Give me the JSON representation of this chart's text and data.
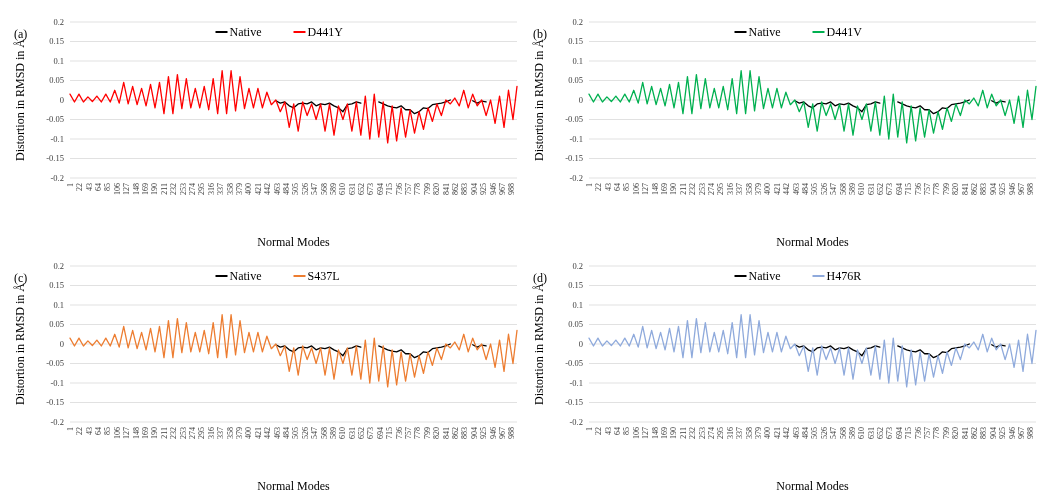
{
  "chart_data": [
    {
      "type": "line",
      "annotations": [
        "(a)"
      ],
      "xlabel": "Normal Modes",
      "ylabel": "Distortion in RMSD in Å",
      "grid": "y",
      "legend": "top",
      "xlim": [
        1,
        1000
      ],
      "xticks": [
        1,
        22,
        43,
        64,
        85,
        106,
        127,
        148,
        169,
        190,
        211,
        232,
        253,
        274,
        295,
        316,
        337,
        358,
        379,
        400,
        421,
        442,
        463,
        484,
        505,
        526,
        547,
        568,
        589,
        610,
        631,
        652,
        673,
        694,
        715,
        736,
        757,
        778,
        799,
        820,
        841,
        862,
        883,
        904,
        925,
        946,
        967,
        988
      ],
      "ylim": [
        -0.2,
        0.2
      ],
      "yticks": [
        0.2,
        0.15,
        0.1,
        0.05,
        0,
        -0.05,
        -0.1,
        -0.15,
        -0.2
      ],
      "x": [
        1,
        11,
        21,
        31,
        41,
        51,
        61,
        71,
        81,
        91,
        101,
        111,
        121,
        131,
        141,
        151,
        161,
        171,
        181,
        191,
        201,
        211,
        221,
        231,
        241,
        251,
        261,
        271,
        281,
        291,
        301,
        311,
        321,
        331,
        341,
        351,
        361,
        371,
        381,
        391,
        401,
        411,
        421,
        431,
        441,
        451,
        461,
        471,
        481,
        491,
        501,
        511,
        521,
        531,
        541,
        551,
        561,
        571,
        581,
        591,
        601,
        611,
        621,
        631,
        641,
        651,
        661,
        671,
        681,
        691,
        701,
        711,
        721,
        731,
        741,
        751,
        761,
        771,
        781,
        791,
        801,
        811,
        821,
        831,
        841,
        851,
        861,
        871,
        881,
        891,
        901,
        911,
        921,
        931,
        941,
        951,
        961,
        971,
        981,
        991,
        1000
      ],
      "series": [
        {
          "name": "Native",
          "color": "#000000",
          "x": [
            461,
            471,
            481,
            491,
            501,
            511,
            521,
            531,
            541,
            551,
            561,
            571,
            581,
            591,
            601,
            611,
            621,
            631,
            641,
            651,
            661,
            671,
            681,
            691,
            701,
            711,
            721,
            731,
            741,
            751,
            761,
            771,
            781,
            791,
            801,
            811,
            821,
            831,
            841,
            851,
            861,
            871,
            881,
            891,
            901,
            911,
            921,
            931
          ],
          "values": [
            -0.002,
            -0.008,
            -0.005,
            -0.015,
            -0.02,
            -0.01,
            -0.008,
            -0.01,
            -0.005,
            -0.015,
            -0.01,
            -0.012,
            -0.008,
            -0.015,
            -0.02,
            -0.03,
            -0.012,
            -0.01,
            -0.005,
            -0.008,
            null,
            null,
            null,
            -0.005,
            -0.01,
            -0.015,
            -0.018,
            -0.02,
            -0.015,
            -0.025,
            -0.025,
            -0.035,
            -0.03,
            -0.02,
            -0.022,
            -0.012,
            -0.01,
            -0.008,
            -0.005,
            0,
            null,
            null,
            null,
            null,
            -0.002,
            -0.008,
            -0.003,
            -0.005
          ]
        },
        {
          "name": "D441Y",
          "color": "#ff0000",
          "values": [
            0.015,
            -0.005,
            0.015,
            -0.005,
            0.008,
            -0.004,
            0.01,
            -0.005,
            0.015,
            -0.005,
            0.025,
            -0.008,
            0.045,
            -0.01,
            0.035,
            -0.012,
            0.03,
            -0.015,
            0.04,
            -0.02,
            0.045,
            -0.035,
            0.06,
            -0.035,
            0.065,
            -0.022,
            0.055,
            -0.02,
            0.03,
            -0.02,
            0.035,
            -0.025,
            0.055,
            -0.035,
            0.075,
            -0.035,
            0.075,
            -0.028,
            0.06,
            -0.022,
            0.03,
            -0.02,
            0.03,
            -0.02,
            0.02,
            -0.012,
            0,
            -0.03,
            -0.005,
            -0.07,
            -0.01,
            -0.08,
            -0.005,
            -0.04,
            -0.01,
            -0.05,
            -0.01,
            -0.08,
            -0.01,
            -0.09,
            -0.015,
            -0.05,
            -0.01,
            -0.08,
            -0.005,
            -0.09,
            0.01,
            -0.1,
            0.015,
            -0.095,
            -0.005,
            -0.11,
            -0.015,
            -0.105,
            -0.02,
            -0.095,
            -0.025,
            -0.085,
            -0.03,
            -0.075,
            -0.02,
            -0.055,
            -0.01,
            -0.04,
            0,
            -0.01,
            0.005,
            -0.015,
            0.025,
            -0.02,
            0.015,
            -0.015,
            0,
            -0.04,
            0,
            -0.06,
            0.01,
            -0.07,
            0.025,
            -0.05,
            0.035
          ]
        }
      ]
    },
    {
      "type": "line",
      "annotations": [
        "(b)"
      ],
      "xlabel": "Normal Modes",
      "ylabel": "Distortion in RMSD in Å",
      "grid": "y",
      "legend": "top",
      "xlim": [
        1,
        1000
      ],
      "xticks": [
        1,
        22,
        43,
        64,
        85,
        106,
        127,
        148,
        169,
        190,
        211,
        232,
        253,
        274,
        295,
        316,
        337,
        358,
        379,
        400,
        421,
        442,
        463,
        484,
        505,
        526,
        547,
        568,
        589,
        610,
        631,
        652,
        673,
        694,
        715,
        736,
        757,
        778,
        799,
        820,
        841,
        862,
        883,
        904,
        925,
        946,
        967,
        988
      ],
      "ylim": [
        -0.2,
        0.2
      ],
      "yticks": [
        0.2,
        0.15,
        0.1,
        0.05,
        0,
        -0.05,
        -0.1,
        -0.15,
        -0.2
      ],
      "x": [
        1,
        11,
        21,
        31,
        41,
        51,
        61,
        71,
        81,
        91,
        101,
        111,
        121,
        131,
        141,
        151,
        161,
        171,
        181,
        191,
        201,
        211,
        221,
        231,
        241,
        251,
        261,
        271,
        281,
        291,
        301,
        311,
        321,
        331,
        341,
        351,
        361,
        371,
        381,
        391,
        401,
        411,
        421,
        431,
        441,
        451,
        461,
        471,
        481,
        491,
        501,
        511,
        521,
        531,
        541,
        551,
        561,
        571,
        581,
        591,
        601,
        611,
        621,
        631,
        641,
        651,
        661,
        671,
        681,
        691,
        701,
        711,
        721,
        731,
        741,
        751,
        761,
        771,
        781,
        791,
        801,
        811,
        821,
        831,
        841,
        851,
        861,
        871,
        881,
        891,
        901,
        911,
        921,
        931,
        941,
        951,
        961,
        971,
        981,
        991,
        1000
      ],
      "series": [
        {
          "name": "Native",
          "color": "#000000",
          "x": [
            461,
            471,
            481,
            491,
            501,
            511,
            521,
            531,
            541,
            551,
            561,
            571,
            581,
            591,
            601,
            611,
            621,
            631,
            641,
            651,
            661,
            671,
            681,
            691,
            701,
            711,
            721,
            731,
            741,
            751,
            761,
            771,
            781,
            791,
            801,
            811,
            821,
            831,
            841,
            851,
            861,
            871,
            881,
            891,
            901,
            911,
            921,
            931
          ],
          "values": [
            -0.002,
            -0.008,
            -0.005,
            -0.015,
            -0.02,
            -0.01,
            -0.008,
            -0.01,
            -0.005,
            -0.015,
            -0.01,
            -0.012,
            -0.008,
            -0.015,
            -0.02,
            -0.03,
            -0.012,
            -0.01,
            -0.005,
            -0.008,
            null,
            null,
            null,
            -0.005,
            -0.01,
            -0.015,
            -0.018,
            -0.02,
            -0.015,
            -0.025,
            -0.025,
            -0.035,
            -0.03,
            -0.02,
            -0.022,
            -0.012,
            -0.01,
            -0.008,
            -0.005,
            0,
            null,
            null,
            null,
            null,
            -0.002,
            -0.008,
            -0.003,
            -0.005
          ]
        },
        {
          "name": "D441V",
          "color": "#00b050",
          "values": [
            0.015,
            -0.005,
            0.015,
            -0.005,
            0.008,
            -0.004,
            0.01,
            -0.005,
            0.015,
            -0.005,
            0.025,
            -0.008,
            0.045,
            -0.01,
            0.035,
            -0.012,
            0.03,
            -0.015,
            0.04,
            -0.02,
            0.045,
            -0.035,
            0.06,
            -0.035,
            0.065,
            -0.022,
            0.055,
            -0.02,
            0.03,
            -0.02,
            0.035,
            -0.025,
            0.055,
            -0.035,
            0.075,
            -0.035,
            0.075,
            -0.028,
            0.06,
            -0.022,
            0.03,
            -0.02,
            0.03,
            -0.02,
            0.02,
            -0.012,
            0,
            -0.03,
            -0.005,
            -0.07,
            -0.01,
            -0.08,
            -0.005,
            -0.04,
            -0.01,
            -0.05,
            -0.01,
            -0.08,
            -0.01,
            -0.09,
            -0.015,
            -0.05,
            -0.01,
            -0.08,
            -0.005,
            -0.09,
            0.01,
            -0.1,
            0.015,
            -0.095,
            -0.005,
            -0.11,
            -0.015,
            -0.105,
            -0.02,
            -0.095,
            -0.025,
            -0.085,
            -0.03,
            -0.075,
            -0.02,
            -0.055,
            -0.01,
            -0.04,
            0,
            -0.01,
            0.005,
            -0.015,
            0.025,
            -0.02,
            0.015,
            -0.015,
            0,
            -0.04,
            0,
            -0.06,
            0.01,
            -0.07,
            0.025,
            -0.05,
            0.035
          ]
        }
      ]
    },
    {
      "type": "line",
      "annotations": [
        "(c)"
      ],
      "xlabel": "Normal Modes",
      "ylabel": "Distortion in RMSD in Å",
      "grid": "y",
      "legend": "top",
      "xlim": [
        1,
        1000
      ],
      "xticks": [
        1,
        22,
        43,
        64,
        85,
        106,
        127,
        148,
        169,
        190,
        211,
        232,
        253,
        274,
        295,
        316,
        337,
        358,
        379,
        400,
        421,
        442,
        463,
        484,
        505,
        526,
        547,
        568,
        589,
        610,
        631,
        652,
        673,
        694,
        715,
        736,
        757,
        778,
        799,
        820,
        841,
        862,
        883,
        904,
        925,
        946,
        967,
        988
      ],
      "ylim": [
        -0.2,
        0.2
      ],
      "yticks": [
        0.2,
        0.15,
        0.1,
        0.05,
        0,
        -0.05,
        -0.1,
        -0.15,
        -0.2
      ],
      "x": [
        1,
        11,
        21,
        31,
        41,
        51,
        61,
        71,
        81,
        91,
        101,
        111,
        121,
        131,
        141,
        151,
        161,
        171,
        181,
        191,
        201,
        211,
        221,
        231,
        241,
        251,
        261,
        271,
        281,
        291,
        301,
        311,
        321,
        331,
        341,
        351,
        361,
        371,
        381,
        391,
        401,
        411,
        421,
        431,
        441,
        451,
        461,
        471,
        481,
        491,
        501,
        511,
        521,
        531,
        541,
        551,
        561,
        571,
        581,
        591,
        601,
        611,
        621,
        631,
        641,
        651,
        661,
        671,
        681,
        691,
        701,
        711,
        721,
        731,
        741,
        751,
        761,
        771,
        781,
        791,
        801,
        811,
        821,
        831,
        841,
        851,
        861,
        871,
        881,
        891,
        901,
        911,
        921,
        931,
        941,
        951,
        961,
        971,
        981,
        991,
        1000
      ],
      "series": [
        {
          "name": "Native",
          "color": "#000000",
          "x": [
            461,
            471,
            481,
            491,
            501,
            511,
            521,
            531,
            541,
            551,
            561,
            571,
            581,
            591,
            601,
            611,
            621,
            631,
            641,
            651,
            661,
            671,
            681,
            691,
            701,
            711,
            721,
            731,
            741,
            751,
            761,
            771,
            781,
            791,
            801,
            811,
            821,
            831,
            841,
            851,
            861,
            871,
            881,
            891,
            901,
            911,
            921,
            931
          ],
          "values": [
            -0.002,
            -0.008,
            -0.005,
            -0.015,
            -0.02,
            -0.01,
            -0.008,
            -0.01,
            -0.005,
            -0.015,
            -0.01,
            -0.012,
            -0.008,
            -0.015,
            -0.02,
            -0.03,
            -0.012,
            -0.01,
            -0.005,
            -0.008,
            null,
            null,
            null,
            -0.005,
            -0.01,
            -0.015,
            -0.018,
            -0.02,
            -0.015,
            -0.025,
            -0.025,
            -0.035,
            -0.03,
            -0.02,
            -0.022,
            -0.012,
            -0.01,
            -0.008,
            -0.005,
            0,
            null,
            null,
            null,
            null,
            -0.002,
            -0.008,
            -0.003,
            -0.005
          ]
        },
        {
          "name": "S437L",
          "color": "#ed7d31",
          "values": [
            0.015,
            -0.005,
            0.015,
            -0.005,
            0.008,
            -0.004,
            0.01,
            -0.005,
            0.015,
            -0.005,
            0.025,
            -0.008,
            0.045,
            -0.01,
            0.035,
            -0.012,
            0.03,
            -0.015,
            0.04,
            -0.02,
            0.045,
            -0.035,
            0.06,
            -0.035,
            0.065,
            -0.022,
            0.055,
            -0.02,
            0.03,
            -0.02,
            0.035,
            -0.025,
            0.055,
            -0.035,
            0.075,
            -0.035,
            0.075,
            -0.028,
            0.06,
            -0.022,
            0.03,
            -0.02,
            0.03,
            -0.02,
            0.02,
            -0.012,
            0,
            -0.03,
            -0.005,
            -0.07,
            -0.01,
            -0.08,
            -0.005,
            -0.04,
            -0.01,
            -0.05,
            -0.01,
            -0.08,
            -0.01,
            -0.09,
            -0.015,
            -0.05,
            -0.01,
            -0.08,
            -0.005,
            -0.09,
            0.01,
            -0.1,
            0.015,
            -0.095,
            -0.005,
            -0.11,
            -0.015,
            -0.105,
            -0.02,
            -0.095,
            -0.025,
            -0.085,
            -0.03,
            -0.075,
            -0.02,
            -0.055,
            -0.01,
            -0.04,
            0,
            -0.01,
            0.005,
            -0.015,
            0.025,
            -0.02,
            0.015,
            -0.015,
            0,
            -0.04,
            0,
            -0.06,
            0.01,
            -0.07,
            0.025,
            -0.05,
            0.035
          ]
        }
      ]
    },
    {
      "type": "line",
      "annotations": [
        "(d)"
      ],
      "xlabel": "Normal Modes",
      "ylabel": "Distortion in RMSD in Å",
      "grid": "y",
      "legend": "top",
      "xlim": [
        1,
        1000
      ],
      "xticks": [
        1,
        22,
        43,
        64,
        85,
        106,
        127,
        148,
        169,
        190,
        211,
        232,
        253,
        274,
        295,
        316,
        337,
        358,
        379,
        400,
        421,
        442,
        463,
        484,
        505,
        526,
        547,
        568,
        589,
        610,
        631,
        652,
        673,
        694,
        715,
        736,
        757,
        778,
        799,
        820,
        841,
        862,
        883,
        904,
        925,
        946,
        967,
        988
      ],
      "ylim": [
        -0.2,
        0.2
      ],
      "yticks": [
        0.2,
        0.15,
        0.1,
        0.05,
        0,
        -0.05,
        -0.1,
        -0.15,
        -0.2
      ],
      "x": [
        1,
        11,
        21,
        31,
        41,
        51,
        61,
        71,
        81,
        91,
        101,
        111,
        121,
        131,
        141,
        151,
        161,
        171,
        181,
        191,
        201,
        211,
        221,
        231,
        241,
        251,
        261,
        271,
        281,
        291,
        301,
        311,
        321,
        331,
        341,
        351,
        361,
        371,
        381,
        391,
        401,
        411,
        421,
        431,
        441,
        451,
        461,
        471,
        481,
        491,
        501,
        511,
        521,
        531,
        541,
        551,
        561,
        571,
        581,
        591,
        601,
        611,
        621,
        631,
        641,
        651,
        661,
        671,
        681,
        691,
        701,
        711,
        721,
        731,
        741,
        751,
        761,
        771,
        781,
        791,
        801,
        811,
        821,
        831,
        841,
        851,
        861,
        871,
        881,
        891,
        901,
        911,
        921,
        931,
        941,
        951,
        961,
        971,
        981,
        991,
        1000
      ],
      "series": [
        {
          "name": "Native",
          "color": "#000000",
          "x": [
            461,
            471,
            481,
            491,
            501,
            511,
            521,
            531,
            541,
            551,
            561,
            571,
            581,
            591,
            601,
            611,
            621,
            631,
            641,
            651,
            661,
            671,
            681,
            691,
            701,
            711,
            721,
            731,
            741,
            751,
            761,
            771,
            781,
            791,
            801,
            811,
            821,
            831,
            841,
            851,
            861,
            871,
            881,
            891,
            901,
            911,
            921,
            931
          ],
          "values": [
            -0.002,
            -0.008,
            -0.005,
            -0.015,
            -0.02,
            -0.01,
            -0.008,
            -0.01,
            -0.005,
            -0.015,
            -0.01,
            -0.012,
            -0.008,
            -0.015,
            -0.02,
            -0.03,
            -0.012,
            -0.01,
            -0.005,
            -0.008,
            null,
            null,
            null,
            -0.005,
            -0.01,
            -0.015,
            -0.018,
            -0.02,
            -0.015,
            -0.025,
            -0.025,
            -0.035,
            -0.03,
            -0.02,
            -0.022,
            -0.012,
            -0.01,
            -0.008,
            -0.005,
            0,
            null,
            null,
            null,
            null,
            -0.002,
            -0.008,
            -0.003,
            -0.005
          ]
        },
        {
          "name": "H476R",
          "color": "#8faadc",
          "values": [
            0.015,
            -0.005,
            0.015,
            -0.005,
            0.008,
            -0.004,
            0.01,
            -0.005,
            0.015,
            -0.005,
            0.025,
            -0.008,
            0.045,
            -0.01,
            0.035,
            -0.012,
            0.03,
            -0.015,
            0.04,
            -0.02,
            0.045,
            -0.035,
            0.06,
            -0.035,
            0.065,
            -0.022,
            0.055,
            -0.02,
            0.03,
            -0.02,
            0.035,
            -0.025,
            0.055,
            -0.035,
            0.075,
            -0.035,
            0.075,
            -0.028,
            0.06,
            -0.022,
            0.03,
            -0.02,
            0.03,
            -0.02,
            0.02,
            -0.012,
            0,
            -0.03,
            -0.005,
            -0.07,
            -0.01,
            -0.08,
            -0.005,
            -0.04,
            -0.01,
            -0.05,
            -0.01,
            -0.08,
            -0.01,
            -0.09,
            -0.015,
            -0.05,
            -0.01,
            -0.08,
            -0.005,
            -0.09,
            0.01,
            -0.1,
            0.015,
            -0.095,
            -0.005,
            -0.11,
            -0.015,
            -0.105,
            -0.02,
            -0.095,
            -0.025,
            -0.085,
            -0.03,
            -0.075,
            -0.02,
            -0.055,
            -0.01,
            -0.04,
            0,
            -0.01,
            0.005,
            -0.015,
            0.025,
            -0.02,
            0.015,
            -0.015,
            0,
            -0.04,
            0,
            -0.06,
            0.01,
            -0.07,
            0.025,
            -0.05,
            0.035
          ]
        }
      ]
    }
  ]
}
